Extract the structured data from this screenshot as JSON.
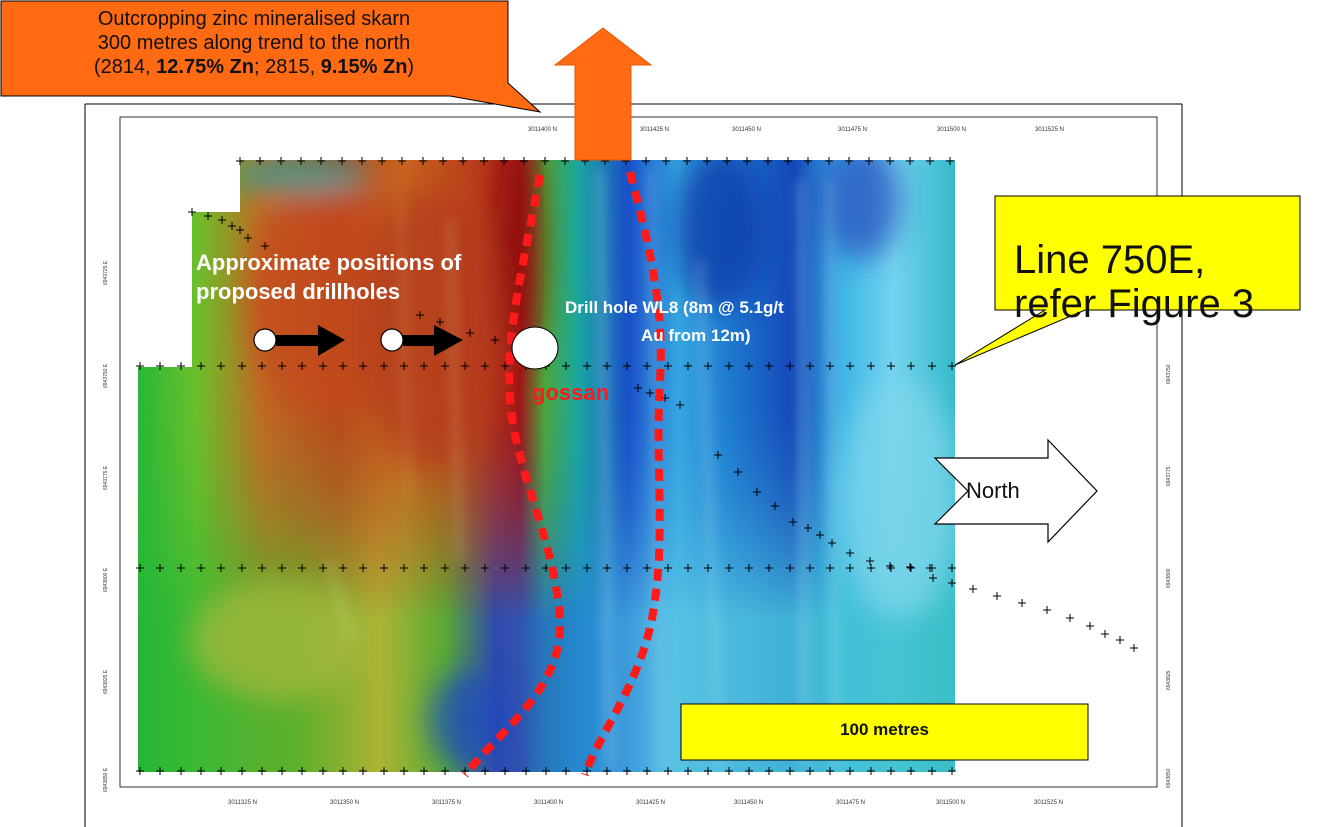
{
  "callout_north": {
    "line1": "Outcropping zinc mineralised skarn",
    "line2": "300 metres along trend to the north",
    "line3_a": "(2814, ",
    "line3_b": "12.75% Zn",
    "line3_c": "; 2815, ",
    "line3_d": "9.15% Zn",
    "line3_e": ")",
    "fill": "#ff6a13"
  },
  "callout_line": {
    "line1": "Line 750E,",
    "line2": "refer Figure 3",
    "fill": "#ffff00"
  },
  "labels": {
    "proposed_line1": "Approximate positions of",
    "proposed_line2": "proposed drillholes",
    "drillhole_line1": "Drill hole WL8 (8m @ 5.1g/t",
    "drillhole_line2": "Au from 12m)",
    "gossan": "gossan",
    "north": "North",
    "scale_bar": "100 metres"
  },
  "colors": {
    "gossan_dash": "#ff1a1a",
    "scale_fill": "#ffff00",
    "arrow_orange": "#ff6a13"
  },
  "axis": {
    "top_ticks": [
      "3011400   N",
      "3011425   N",
      "3011450   N",
      "3011475   N",
      "3011500   N",
      "3011525   N"
    ],
    "bottom_ticks": [
      "3011325   N",
      "3011350   N",
      "3011375   N",
      "3011400   N",
      "3011425   N",
      "3011450   N",
      "3011475   N",
      "3011500   N",
      "3011525   N"
    ],
    "left_ticks": [
      "6943725   E",
      "6943750   E",
      "6943775   E",
      "6943800   E",
      "6943825   E",
      "6943850   E"
    ],
    "right_ticks": [
      "6943750",
      "6943775",
      "6943800",
      "6943825",
      "6943850"
    ]
  }
}
